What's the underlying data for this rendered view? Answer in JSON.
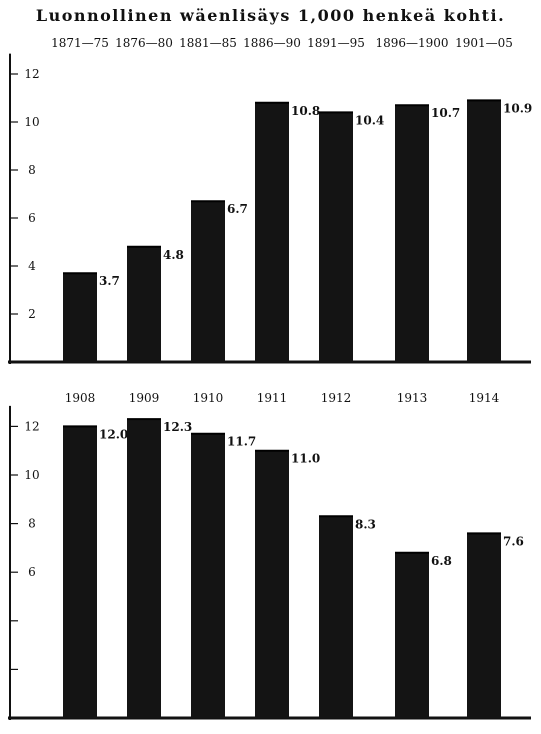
{
  "title": "Luonnollinen wäenlisäys 1,000 henkeä kohti.",
  "chart_data": [
    {
      "type": "bar",
      "categories": [
        "1871—75",
        "1876—80",
        "1881—85",
        "1886—90",
        "1891—95",
        "1896—1900",
        "1901—05"
      ],
      "values": [
        3.7,
        4.8,
        6.7,
        10.8,
        10.4,
        10.7,
        10.9
      ],
      "data_labels": [
        "3.7",
        "4.8",
        "6.7",
        "10.8",
        "10.4",
        "10.7",
        "10.9"
      ],
      "yticks": [
        "2",
        "4",
        "6",
        "8",
        "10",
        "12"
      ],
      "ylim": [
        0,
        12.6
      ],
      "grid": false,
      "bar_color": "#141414"
    },
    {
      "type": "bar",
      "categories": [
        "1908",
        "1909",
        "1910",
        "1911",
        "1912",
        "1913",
        "1914"
      ],
      "values": [
        12.0,
        12.3,
        11.7,
        11.0,
        8.3,
        6.8,
        7.6
      ],
      "data_labels": [
        "12.0",
        "12.3",
        "11.7",
        "11.0",
        "8.3",
        "6.8",
        "7.6"
      ],
      "yticks": [
        "",
        "",
        "6",
        "8",
        "10",
        "12"
      ],
      "ylim": [
        0,
        12.6
      ],
      "grid": false,
      "bar_color": "#141414"
    }
  ]
}
